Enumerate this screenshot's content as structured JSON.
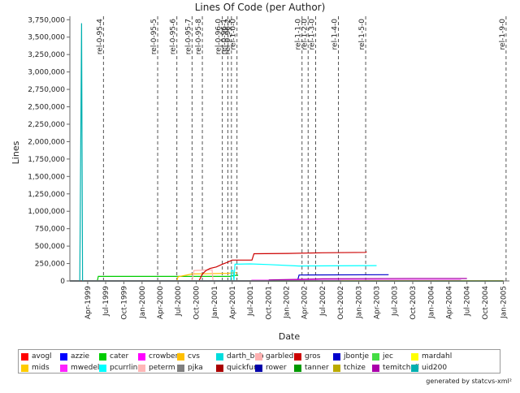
{
  "chart_data": {
    "type": "line",
    "title": "Lines Of Code (per Author)",
    "xlabel": "Date",
    "ylabel": "Lines",
    "ylim": [
      0,
      3800000
    ],
    "xlim": [
      "1999-01-01",
      "2005-02-01"
    ],
    "grid": false,
    "y_ticks": [
      0,
      250000,
      500000,
      750000,
      1000000,
      1250000,
      1500000,
      1750000,
      2000000,
      2250000,
      2500000,
      2750000,
      3000000,
      3250000,
      3500000,
      3750000
    ],
    "y_tick_labels": [
      "0",
      "250,000",
      "500,000",
      "750,000",
      "1,000,000",
      "1,250,000",
      "1,500,000",
      "1,750,000",
      "2,000,000",
      "2,250,000",
      "2,500,000",
      "2,750,000",
      "3,000,000",
      "3,250,000",
      "3,500,000",
      "3,750,000"
    ],
    "x_ticks": [
      "1999-04-01",
      "1999-07-01",
      "1999-10-01",
      "2000-01-01",
      "2000-04-01",
      "2000-07-01",
      "2000-10-01",
      "2001-01-01",
      "2001-04-01",
      "2001-07-01",
      "2001-10-01",
      "2002-01-01",
      "2002-04-01",
      "2002-07-01",
      "2002-10-01",
      "2003-01-01",
      "2003-04-01",
      "2003-07-01",
      "2003-10-01",
      "2004-01-01",
      "2004-04-01",
      "2004-07-01",
      "2004-10-01",
      "2005-01-01"
    ],
    "x_tick_labels": [
      "Apr-1999",
      "Jul-1999",
      "Oct-1999",
      "Jan-2000",
      "Apr-2000",
      "Jul-2000",
      "Oct-2000",
      "Jan-2001",
      "Apr-2001",
      "Jul-2001",
      "Oct-2001",
      "Jan-2002",
      "Apr-2002",
      "Jul-2002",
      "Oct-2002",
      "Jan-2003",
      "Apr-2003",
      "Jul-2003",
      "Oct-2003",
      "Jan-2004",
      "Apr-2004",
      "Jul-2004",
      "Oct-2004",
      "Jan-2005"
    ],
    "markers": [
      {
        "label": "rel-0-95-4",
        "date": "1999-06-20"
      },
      {
        "label": "rel-0-95-5",
        "date": "2000-03-20"
      },
      {
        "label": "rel-0-95-6",
        "date": "2000-06-25"
      },
      {
        "label": "rel-0-95-7",
        "date": "2000-09-10"
      },
      {
        "label": "rel-0-95-8",
        "date": "2000-11-01"
      },
      {
        "label": "rel-0-96-0",
        "date": "2001-02-10"
      },
      {
        "label": "rel-0-96-1",
        "date": "2001-03-10"
      },
      {
        "label": "rel-0-96-2",
        "date": "2001-03-28"
      },
      {
        "label": "rel-1-0-0",
        "date": "2001-04-25"
      },
      {
        "label": "rel-1-1-0",
        "date": "2002-03-20"
      },
      {
        "label": "rel-1-2-0",
        "date": "2002-04-20"
      },
      {
        "label": "rel-1-3-0",
        "date": "2002-05-28"
      },
      {
        "label": "rel-1-4-0",
        "date": "2002-09-20"
      },
      {
        "label": "rel-1-5-0",
        "date": "2003-02-05"
      },
      {
        "label": "rel-1-9-0",
        "date": "2005-01-15"
      }
    ],
    "series": [
      {
        "name": "avogl",
        "color": "#ff0000",
        "points": [
          [
            "1999-01-01",
            0
          ],
          [
            "2005-01-01",
            0
          ]
        ]
      },
      {
        "name": "azzie",
        "color": "#0000ff",
        "points": [
          [
            "1999-01-01",
            0
          ],
          [
            "2005-01-01",
            0
          ]
        ]
      },
      {
        "name": "cater",
        "color": "#00cc00",
        "points": [
          [
            "1999-01-01",
            0
          ],
          [
            "1999-05-20",
            0
          ],
          [
            "1999-05-25",
            65000
          ],
          [
            "2001-03-20",
            65000
          ],
          [
            "2001-04-15",
            80000
          ],
          [
            "2001-05-01",
            80000
          ]
        ]
      },
      {
        "name": "crowbert",
        "color": "#ff00ff",
        "points": [
          [
            "1999-01-01",
            0
          ],
          [
            "2005-01-01",
            0
          ]
        ]
      },
      {
        "name": "cvs",
        "color": "#ffc000",
        "points": [
          [
            "1999-01-01",
            0
          ],
          [
            "2000-06-25",
            0
          ],
          [
            "2000-07-01",
            60000
          ],
          [
            "2000-09-10",
            100000
          ],
          [
            "2001-03-10",
            110000
          ],
          [
            "2001-04-25",
            120000
          ]
        ]
      },
      {
        "name": "darth_bob",
        "color": "#00dddd",
        "points": [
          [
            "1999-01-01",
            0
          ],
          [
            "2001-03-25",
            0
          ],
          [
            "2001-03-28",
            150000
          ],
          [
            "2001-04-05",
            150000
          ],
          [
            "2001-04-10",
            0
          ]
        ]
      },
      {
        "name": "garbled",
        "color": "#ffb0b0",
        "points": [
          [
            "1999-01-01",
            0
          ],
          [
            "2000-09-10",
            0
          ],
          [
            "2000-09-20",
            150000
          ],
          [
            "2000-12-20",
            160000
          ],
          [
            "2000-12-25",
            0
          ]
        ]
      },
      {
        "name": "gros",
        "color": "#cc0000",
        "points": [
          [
            "1999-01-01",
            0
          ],
          [
            "2000-10-15",
            0
          ],
          [
            "2000-11-01",
            100000
          ],
          [
            "2000-11-20",
            150000
          ],
          [
            "2000-12-10",
            180000
          ],
          [
            "2001-01-10",
            200000
          ],
          [
            "2001-02-10",
            240000
          ],
          [
            "2001-03-10",
            270000
          ],
          [
            "2001-04-01",
            300000
          ],
          [
            "2001-07-10",
            300000
          ],
          [
            "2001-07-20",
            390000
          ],
          [
            "2002-01-10",
            395000
          ],
          [
            "2002-07-01",
            405000
          ],
          [
            "2003-02-05",
            410000
          ],
          [
            "2003-02-10",
            420000
          ]
        ]
      },
      {
        "name": "jbontje",
        "color": "#0000cc",
        "points": [
          [
            "1999-01-01",
            0
          ],
          [
            "2002-02-25",
            0
          ],
          [
            "2002-03-05",
            85000
          ],
          [
            "2003-06-01",
            90000
          ]
        ]
      },
      {
        "name": "jec",
        "color": "#44dd44",
        "points": [
          [
            "1999-01-01",
            0
          ],
          [
            "2005-01-01",
            0
          ]
        ]
      },
      {
        "name": "mardahl",
        "color": "#ffff00",
        "points": [
          [
            "1999-01-01",
            0
          ],
          [
            "2005-01-01",
            0
          ]
        ]
      },
      {
        "name": "mids",
        "color": "#ffcc00",
        "points": [
          [
            "1999-01-01",
            0
          ],
          [
            "2005-01-01",
            0
          ]
        ]
      },
      {
        "name": "mwedel",
        "color": "#ff22ff",
        "points": [
          [
            "1999-01-01",
            0
          ],
          [
            "2001-07-01",
            0
          ],
          [
            "2001-07-10",
            10000
          ],
          [
            "2004-06-01",
            10000
          ]
        ]
      },
      {
        "name": "pcurrlin",
        "color": "#00ffff",
        "points": [
          [
            "1999-01-01",
            0
          ],
          [
            "2001-04-10",
            0
          ],
          [
            "2001-04-15",
            240000
          ],
          [
            "2001-07-01",
            245000
          ],
          [
            "2001-10-01",
            235000
          ],
          [
            "2002-03-05",
            215000
          ],
          [
            "2003-04-01",
            220000
          ]
        ]
      },
      {
        "name": "peterm",
        "color": "#ffb6b6",
        "points": [
          [
            "1999-01-01",
            0
          ],
          [
            "2005-01-01",
            0
          ]
        ]
      },
      {
        "name": "pjka",
        "color": "#808080",
        "points": [
          [
            "1999-01-01",
            0
          ],
          [
            "2005-01-01",
            0
          ]
        ]
      },
      {
        "name": "quickfur",
        "color": "#aa0000",
        "points": [
          [
            "1999-01-01",
            0
          ],
          [
            "2005-01-01",
            0
          ]
        ]
      },
      {
        "name": "rower",
        "color": "#0000aa",
        "points": [
          [
            "1999-01-01",
            0
          ],
          [
            "2005-01-01",
            0
          ]
        ]
      },
      {
        "name": "tanner",
        "color": "#009900",
        "points": [
          [
            "1999-01-01",
            0
          ],
          [
            "2005-01-01",
            0
          ]
        ]
      },
      {
        "name": "tchize",
        "color": "#bbaa00",
        "points": [
          [
            "1999-01-01",
            0
          ],
          [
            "2002-10-01",
            0
          ],
          [
            "2002-10-05",
            5000
          ],
          [
            "2005-01-01",
            5000
          ]
        ]
      },
      {
        "name": "temitchell",
        "color": "#aa00aa",
        "points": [
          [
            "1999-01-01",
            0
          ],
          [
            "2001-10-01",
            0
          ],
          [
            "2001-10-05",
            15000
          ],
          [
            "2002-07-01",
            30000
          ],
          [
            "2003-10-01",
            35000
          ],
          [
            "2004-07-01",
            35000
          ]
        ]
      },
      {
        "name": "uid200",
        "color": "#00b0b0",
        "points": [
          [
            "1999-01-01",
            0
          ],
          [
            "1999-02-20",
            0
          ],
          [
            "1999-03-01",
            3700000
          ],
          [
            "1999-03-06",
            0
          ],
          [
            "2005-01-01",
            0
          ]
        ]
      }
    ]
  },
  "footer": {
    "credit": "generated by statcvs-xml²"
  }
}
